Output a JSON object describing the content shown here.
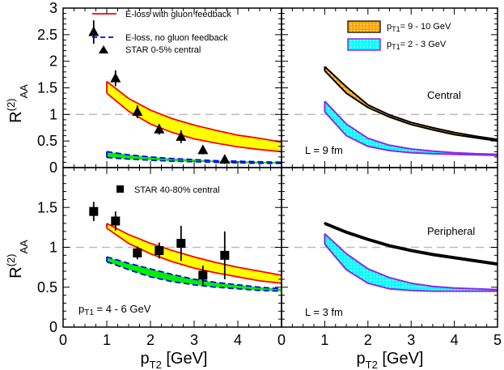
{
  "chart_data": [
    {
      "panel": "top-left",
      "type": "line",
      "xlim": [
        0,
        5
      ],
      "ylim": [
        0,
        3
      ],
      "xticks": [
        0,
        1,
        2,
        3,
        4
      ],
      "yticks": [
        0,
        0.5,
        1,
        1.5,
        2,
        2.5,
        3
      ],
      "ytick_labels": [
        "0",
        "0.5",
        "1",
        "1.5",
        "2",
        "2.5",
        "3"
      ],
      "ylabel": "R",
      "ylabel_sup": "(2)",
      "ylabel_sub": "AA",
      "reference_line": 1,
      "bands": [
        {
          "name": "E-loss with gluon feedback",
          "fill": "#ffff00",
          "edge": "#ff0000",
          "edge_style": "solid",
          "x": [
            1,
            1.5,
            2,
            2.5,
            3,
            3.5,
            4,
            4.5,
            5
          ],
          "lower": [
            1.4,
            1.06,
            0.82,
            0.66,
            0.54,
            0.46,
            0.39,
            0.34,
            0.3
          ],
          "upper": [
            1.62,
            1.3,
            1.08,
            0.92,
            0.8,
            0.7,
            0.61,
            0.55,
            0.48
          ]
        },
        {
          "name": "E-loss, no gluon feedback",
          "fill": "#00ee00",
          "edge": "#0000ff",
          "edge_style": "dashed",
          "x": [
            1,
            1.5,
            2,
            2.5,
            3,
            3.5,
            4,
            4.5,
            5
          ],
          "lower": [
            0.19,
            0.16,
            0.14,
            0.12,
            0.11,
            0.1,
            0.09,
            0.08,
            0.08
          ],
          "upper": [
            0.3,
            0.24,
            0.2,
            0.17,
            0.15,
            0.13,
            0.12,
            0.11,
            0.1
          ]
        }
      ],
      "points": {
        "name": "STAR 0-5% central",
        "marker": "triangle",
        "x": [
          0.7,
          1.2,
          1.7,
          2.2,
          2.7,
          3.2,
          3.7
        ],
        "y": [
          2.55,
          1.68,
          1.05,
          0.72,
          0.58,
          0.33,
          0.15
        ],
        "err": [
          0.22,
          0.15,
          0.12,
          0.1,
          0.12,
          0.08,
          0.08
        ]
      },
      "legend": [
        {
          "label": "E-loss with gluon feedback",
          "style": "red-solid"
        },
        {
          "label": "E-loss, no gluon feedback",
          "style": "blue-dashed"
        },
        {
          "label": "STAR 0-5% central",
          "style": "triangle"
        }
      ]
    },
    {
      "panel": "top-right",
      "type": "line",
      "xlim": [
        0,
        5
      ],
      "ylim": [
        0,
        3
      ],
      "xticks": [
        0,
        1,
        2,
        3,
        4,
        5
      ],
      "reference_line": 1,
      "bands": [
        {
          "name": "pT1 = 9 - 10 GeV",
          "fill": "#ffa500",
          "edge": "#000000",
          "pattern": "dots",
          "x": [
            1,
            1.5,
            2,
            2.5,
            3,
            3.5,
            4,
            4.5,
            5
          ],
          "lower": [
            1.82,
            1.4,
            1.13,
            0.95,
            0.81,
            0.71,
            0.62,
            0.56,
            0.5
          ],
          "upper": [
            1.9,
            1.52,
            1.18,
            0.99,
            0.85,
            0.75,
            0.66,
            0.59,
            0.53
          ]
        },
        {
          "name": "pT1 = 2 - 3 GeV",
          "fill": "#00ffff",
          "edge": "#8a2be2",
          "pattern": "dots",
          "x": [
            1,
            1.5,
            2,
            2.5,
            3,
            3.5,
            4,
            4.5,
            5
          ],
          "lower": [
            1.05,
            0.6,
            0.4,
            0.32,
            0.28,
            0.26,
            0.25,
            0.24,
            0.23
          ],
          "upper": [
            1.25,
            0.82,
            0.55,
            0.42,
            0.35,
            0.31,
            0.28,
            0.26,
            0.25
          ]
        }
      ],
      "legend": [
        {
          "label": "pT1 = 9 - 10 GeV",
          "text": "= 9 - 10 GeV",
          "style": "orange-dotted-box"
        },
        {
          "label": "pT1 = 2 - 3 GeV",
          "text": "= 2 - 3 GeV",
          "style": "cyan-dotted-box"
        }
      ],
      "annotations": [
        "Central",
        "L = 9 fm"
      ]
    },
    {
      "panel": "bottom-left",
      "type": "line",
      "xlim": [
        0,
        5
      ],
      "ylim": [
        0,
        2
      ],
      "xticks": [
        0,
        1,
        2,
        3,
        4
      ],
      "yticks": [
        0,
        0.5,
        1,
        1.5
      ],
      "ytick_labels": [
        "0",
        "0.5",
        "1",
        "1.5"
      ],
      "xlabel": "p",
      "xlabel_sub": "T2",
      "xlabel_unit": " [GeV]",
      "ylabel": "R",
      "ylabel_sup": "(2)",
      "ylabel_sub": "AA",
      "reference_line": 1,
      "bands": [
        {
          "name": "E-loss with gluon feedback",
          "fill": "#ffff00",
          "edge": "#ff0000",
          "edge_style": "solid",
          "x": [
            1,
            1.5,
            2,
            2.5,
            3,
            3.5,
            4,
            4.5,
            5
          ],
          "lower": [
            1.24,
            1.05,
            0.92,
            0.82,
            0.74,
            0.68,
            0.63,
            0.58,
            0.55
          ],
          "upper": [
            1.3,
            1.16,
            1.05,
            0.96,
            0.88,
            0.81,
            0.75,
            0.7,
            0.65
          ]
        },
        {
          "name": "E-loss, no gluon feedback",
          "fill": "#00ee00",
          "edge": "#0000ff",
          "edge_style": "dashed",
          "x": [
            1,
            1.5,
            2,
            2.5,
            3,
            3.5,
            4,
            4.5,
            5
          ],
          "lower": [
            0.82,
            0.72,
            0.63,
            0.57,
            0.53,
            0.5,
            0.48,
            0.46,
            0.45
          ],
          "upper": [
            0.88,
            0.8,
            0.73,
            0.66,
            0.6,
            0.56,
            0.53,
            0.5,
            0.48
          ]
        }
      ],
      "points": {
        "name": "STAR 40-80% central",
        "marker": "square",
        "x": [
          0.7,
          1.2,
          1.7,
          2.2,
          2.7,
          3.2,
          3.7
        ],
        "y": [
          1.45,
          1.33,
          0.93,
          0.96,
          1.05,
          0.65,
          0.9
        ],
        "err": [
          0.12,
          0.12,
          0.08,
          0.1,
          0.22,
          0.12,
          0.3
        ]
      },
      "legend": [
        {
          "label": "STAR 40-80% central",
          "style": "square"
        }
      ],
      "annotations": [
        "p",
        "T1",
        " = 4 - 6 GeV"
      ]
    },
    {
      "panel": "bottom-right",
      "type": "line",
      "xlim": [
        0,
        5
      ],
      "ylim": [
        0,
        2
      ],
      "xticks": [
        0,
        1,
        2,
        3,
        4,
        5
      ],
      "xlabel": "p",
      "xlabel_sub": "T2",
      "xlabel_unit": " [GeV]",
      "reference_line": 1,
      "bands": [
        {
          "name": "pT1 = 9 - 10 GeV",
          "fill": "#ffa500",
          "edge": "#000000",
          "pattern": "dots",
          "x": [
            1,
            1.5,
            2,
            2.5,
            3,
            3.5,
            4,
            4.5,
            5
          ],
          "lower": [
            1.29,
            1.18,
            1.09,
            1.01,
            0.95,
            0.9,
            0.86,
            0.82,
            0.78
          ],
          "upper": [
            1.31,
            1.2,
            1.11,
            1.03,
            0.97,
            0.92,
            0.88,
            0.84,
            0.8
          ]
        },
        {
          "name": "pT1 = 2 - 3 GeV",
          "fill": "#00ffff",
          "edge": "#8a2be2",
          "pattern": "dots",
          "x": [
            1,
            1.5,
            2,
            2.5,
            3,
            3.5,
            4,
            4.5,
            5
          ],
          "lower": [
            1.04,
            0.72,
            0.55,
            0.48,
            0.46,
            0.45,
            0.45,
            0.45,
            0.45
          ],
          "upper": [
            1.17,
            0.92,
            0.73,
            0.62,
            0.55,
            0.51,
            0.49,
            0.48,
            0.47
          ]
        }
      ],
      "annotations": [
        "Peripheral",
        "L = 3 fm"
      ]
    }
  ]
}
